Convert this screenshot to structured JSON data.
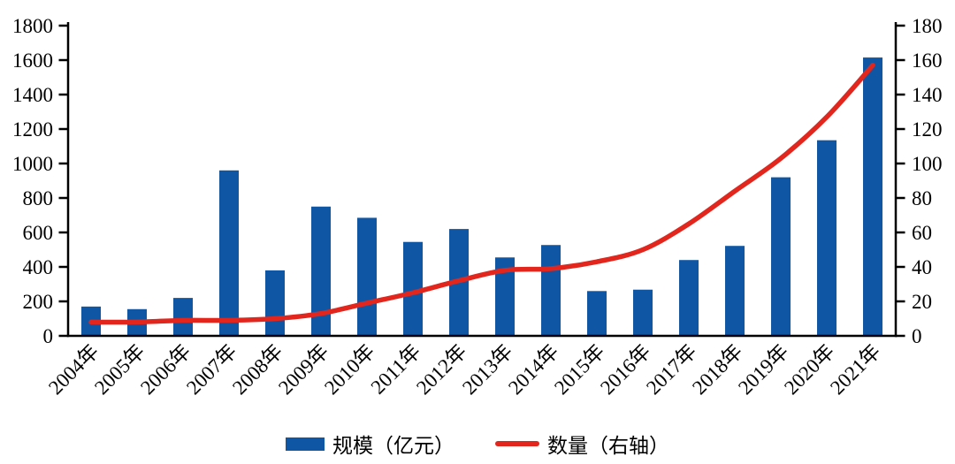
{
  "chart_data": {
    "type": "bar",
    "combo": "bar+line dual axis",
    "categories": [
      "2004年",
      "2005年",
      "2006年",
      "2007年",
      "2008年",
      "2009年",
      "2010年",
      "2011年",
      "2012年",
      "2013年",
      "2014年",
      "2015年",
      "2016年",
      "2017年",
      "2018年",
      "2019年",
      "2020年",
      "2021年"
    ],
    "series": [
      {
        "name": "规模（亿元）",
        "type": "bar",
        "axis": "left",
        "color": "#0F57A4",
        "values": [
          170,
          155,
          220,
          960,
          380,
          750,
          685,
          545,
          620,
          455,
          527,
          260,
          268,
          440,
          522,
          920,
          1135,
          1615
        ]
      },
      {
        "name": "数量（右轴）",
        "type": "line",
        "axis": "right",
        "color": "#E2261D",
        "values": [
          8,
          8,
          9,
          9,
          10,
          13,
          19,
          25,
          32,
          38,
          39,
          43,
          50,
          65,
          84,
          103,
          127,
          157
        ]
      }
    ],
    "left_axis": {
      "min": 0,
      "max": 1800,
      "step": 200,
      "tick_labels": [
        "0",
        "200",
        "400",
        "600",
        "800",
        "1000",
        "1200",
        "1400",
        "1600",
        "1800"
      ]
    },
    "right_axis": {
      "min": 0,
      "max": 180,
      "step": 20,
      "tick_labels": [
        "0",
        "20",
        "40",
        "60",
        "80",
        "100",
        "120",
        "140",
        "160",
        "180"
      ]
    },
    "grid": false,
    "legend_position": "bottom"
  },
  "colors": {
    "axis": "#000000",
    "label_text": "#000000"
  }
}
